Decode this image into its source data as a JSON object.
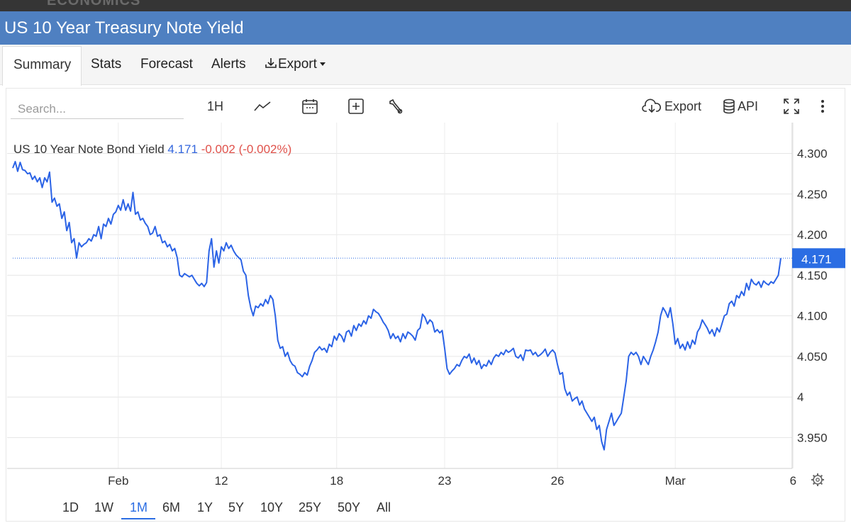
{
  "site": {
    "brand": "ECONOMICS"
  },
  "header": {
    "title": "US 10 Year Treasury Note Yield"
  },
  "tabs": [
    {
      "label": "Summary",
      "active": true
    },
    {
      "label": "Stats"
    },
    {
      "label": "Forecast"
    },
    {
      "label": "Alerts"
    },
    {
      "label": "Export",
      "icon": "download-icon"
    }
  ],
  "toolbar": {
    "search_placeholder": "Search...",
    "interval": "1H",
    "export_label": "Export",
    "api_label": "API",
    "icons": [
      "line-chart-icon",
      "calendar-icon",
      "plus-square-icon",
      "wrench-icon",
      "cloud-download-icon",
      "database-icon",
      "fullscreen-icon",
      "more-vertical-icon"
    ]
  },
  "legend": {
    "name": "US 10 Year Note Bond Yield",
    "value": "4.171",
    "change": "-0.002 (-0.002%)"
  },
  "ranges": [
    {
      "label": "1D"
    },
    {
      "label": "1W"
    },
    {
      "label": "1M",
      "active": true
    },
    {
      "label": "6M"
    },
    {
      "label": "1Y"
    },
    {
      "label": "5Y"
    },
    {
      "label": "10Y"
    },
    {
      "label": "25Y"
    },
    {
      "label": "50Y"
    },
    {
      "label": "All"
    }
  ],
  "colors": {
    "line": "#2b63e6",
    "accent": "#2b6de3",
    "title_bar": "#4f80c1",
    "negative": "#e0524b"
  },
  "chart_data": {
    "type": "line",
    "title": "US 10 Year Note Bond Yield",
    "y_axis_side": "right",
    "ylim": [
      3.912,
      4.338
    ],
    "y_ticks": [
      {
        "value": 4.3,
        "label": "4.300"
      },
      {
        "value": 4.25,
        "label": "4.250"
      },
      {
        "value": 4.2,
        "label": "4.200"
      },
      {
        "value": 4.15,
        "label": "4.150"
      },
      {
        "value": 4.1,
        "label": "4.100"
      },
      {
        "value": 4.05,
        "label": "4.050"
      },
      {
        "value": 4.0,
        "label": "4"
      },
      {
        "value": 3.95,
        "label": "3.950"
      }
    ],
    "x_ticks": [
      {
        "index": 43,
        "label": "Feb"
      },
      {
        "index": 85,
        "label": "12"
      },
      {
        "index": 132,
        "label": "18"
      },
      {
        "index": 176,
        "label": "23"
      },
      {
        "index": 222,
        "label": "26"
      },
      {
        "index": 270,
        "label": "Mar"
      },
      {
        "index": 318,
        "label": "6"
      }
    ],
    "last_value": 4.171,
    "last_label": "4.171",
    "grid": true,
    "series": [
      {
        "values": [
          4.282,
          4.29,
          4.278,
          4.289,
          4.28,
          4.279,
          4.275,
          4.276,
          4.268,
          4.272,
          4.265,
          4.27,
          4.258,
          4.27,
          4.265,
          4.277,
          4.24,
          4.245,
          4.235,
          4.238,
          4.22,
          4.228,
          4.205,
          4.215,
          4.19,
          4.195,
          4.171,
          4.19,
          4.185,
          4.188,
          4.19,
          4.195,
          4.192,
          4.2,
          4.198,
          4.21,
          4.195,
          4.213,
          4.21,
          4.22,
          4.213,
          4.225,
          4.228,
          4.236,
          4.23,
          4.243,
          4.23,
          4.238,
          4.229,
          4.252,
          4.225,
          4.228,
          4.218,
          4.22,
          4.214,
          4.21,
          4.2,
          4.202,
          4.21,
          4.198,
          4.2,
          4.19,
          4.192,
          4.185,
          4.188,
          4.18,
          4.183,
          4.172,
          4.15,
          4.148,
          4.152,
          4.15,
          4.148,
          4.15,
          4.145,
          4.14,
          4.137,
          4.14,
          4.136,
          4.141,
          4.18,
          4.195,
          4.16,
          4.18,
          4.165,
          4.185,
          4.18,
          4.19,
          4.183,
          4.187,
          4.18,
          4.175,
          4.172,
          4.169,
          4.155,
          4.15,
          4.125,
          4.11,
          4.1,
          4.112,
          4.11,
          4.115,
          4.112,
          4.12,
          4.115,
          4.125,
          4.12,
          4.1,
          4.07,
          4.06,
          4.062,
          4.05,
          4.055,
          4.045,
          4.04,
          4.038,
          4.03,
          4.028,
          4.025,
          4.03,
          4.027,
          4.038,
          4.045,
          4.055,
          4.058,
          4.062,
          4.058,
          4.06,
          4.055,
          4.065,
          4.062,
          4.075,
          4.07,
          4.078,
          4.075,
          4.068,
          4.08,
          4.082,
          4.075,
          4.088,
          4.082,
          4.09,
          4.087,
          4.094,
          4.09,
          4.1,
          4.097,
          4.108,
          4.105,
          4.103,
          4.098,
          4.092,
          4.088,
          4.082,
          4.072,
          4.078,
          4.072,
          4.075,
          4.068,
          4.078,
          4.072,
          4.08,
          4.078,
          4.075,
          4.07,
          4.082,
          4.085,
          4.102,
          4.098,
          4.09,
          4.095,
          4.092,
          4.08,
          4.083,
          4.079,
          4.082,
          4.06,
          4.035,
          4.028,
          4.032,
          4.035,
          4.04,
          4.038,
          4.045,
          4.05,
          4.048,
          4.053,
          4.042,
          4.048,
          4.04,
          4.045,
          4.035,
          4.04,
          4.038,
          4.045,
          4.04,
          4.048,
          4.052,
          4.05,
          4.055,
          4.052,
          4.058,
          4.055,
          4.057,
          4.06,
          4.05,
          4.048,
          4.052,
          4.045,
          4.058,
          4.057,
          4.058,
          4.052,
          4.055,
          4.05,
          4.052,
          4.055,
          4.059,
          4.05,
          4.055,
          4.058,
          4.054,
          4.04,
          4.028,
          4.03,
          4.01,
          4.002,
          4.006,
          3.995,
          3.998,
          4.0,
          3.99,
          3.995,
          3.985,
          3.98,
          3.975,
          3.97,
          3.975,
          3.96,
          3.965,
          3.945,
          3.935,
          3.96,
          3.97,
          3.98,
          3.965,
          3.97,
          3.975,
          3.98,
          4.0,
          4.02,
          4.05,
          4.055,
          4.052,
          4.055,
          4.05,
          4.04,
          4.05,
          4.045,
          4.04,
          4.05,
          4.058,
          4.068,
          4.08,
          4.1,
          4.11,
          4.105,
          4.098,
          4.11,
          4.09,
          4.065,
          4.072,
          4.06,
          4.065,
          4.058,
          4.068,
          4.06,
          4.07,
          4.065,
          4.08,
          4.085,
          4.095,
          4.09,
          4.085,
          4.078,
          4.083,
          4.075,
          4.085,
          4.08,
          4.09,
          4.1,
          4.102,
          4.115,
          4.118,
          4.112,
          4.125,
          4.122,
          4.13,
          4.125,
          4.14,
          4.132,
          4.145,
          4.14,
          4.138,
          4.142,
          4.135,
          4.143,
          4.14,
          4.138,
          4.142,
          4.14,
          4.145,
          4.15,
          4.171
        ]
      }
    ]
  }
}
